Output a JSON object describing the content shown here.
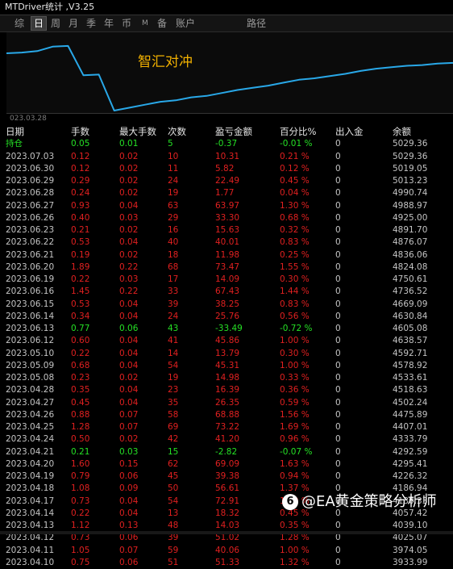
{
  "window": {
    "title": "MTDriver统计 ,V3.25"
  },
  "toolbar": {
    "buttons": [
      "综",
      "日",
      "周",
      "月",
      "季",
      "年",
      "币",
      "M",
      "备",
      "账户",
      "路径"
    ],
    "active": "日"
  },
  "chart": {
    "title": "智汇对冲",
    "start_date_label": "023.03.28",
    "line_color": "#29a8e8",
    "chart_data": {
      "type": "line",
      "title": "",
      "xlabel": "",
      "ylabel": "",
      "legend": "none",
      "grid": false,
      "ylim": [
        0.0,
        1.0
      ],
      "series": [
        {
          "values": [
            0.78,
            0.79,
            0.81,
            0.87,
            0.88,
            0.48,
            0.49,
            0.0,
            0.04,
            0.08,
            0.12,
            0.14,
            0.18,
            0.2,
            0.24,
            0.28,
            0.31,
            0.34,
            0.38,
            0.42,
            0.44,
            0.47,
            0.5,
            0.54,
            0.57,
            0.59,
            0.61,
            0.62,
            0.64,
            0.65
          ]
        }
      ]
    }
  },
  "table": {
    "headers": [
      "日期",
      "手数",
      "最大手数",
      "次数",
      "盈亏金额",
      "百分比%",
      "出入金",
      "余额"
    ],
    "rows": [
      {
        "cells": [
          "持仓",
          "0.05",
          "0.01",
          "5",
          "-0.37",
          "-0.01 %",
          "0",
          "5029.36"
        ],
        "type": "green"
      },
      {
        "cells": [
          "2023.07.03",
          "0.12",
          "0.02",
          "10",
          "10.31",
          "0.21 %",
          "0",
          "5029.36"
        ],
        "type": "red"
      },
      {
        "cells": [
          "2023.06.30",
          "0.12",
          "0.02",
          "11",
          "5.82",
          "0.12 %",
          "0",
          "5019.05"
        ],
        "type": "red"
      },
      {
        "cells": [
          "2023.06.29",
          "0.29",
          "0.02",
          "24",
          "22.49",
          "0.45 %",
          "0",
          "5013.23"
        ],
        "type": "red"
      },
      {
        "cells": [
          "2023.06.28",
          "0.24",
          "0.02",
          "19",
          "1.77",
          "0.04 %",
          "0",
          "4990.74"
        ],
        "type": "red"
      },
      {
        "cells": [
          "2023.06.27",
          "0.93",
          "0.04",
          "63",
          "63.97",
          "1.30 %",
          "0",
          "4988.97"
        ],
        "type": "red"
      },
      {
        "cells": [
          "2023.06.26",
          "0.40",
          "0.03",
          "29",
          "33.30",
          "0.68 %",
          "0",
          "4925.00"
        ],
        "type": "red"
      },
      {
        "cells": [
          "2023.06.23",
          "0.21",
          "0.02",
          "16",
          "15.63",
          "0.32 %",
          "0",
          "4891.70"
        ],
        "type": "red"
      },
      {
        "cells": [
          "2023.06.22",
          "0.53",
          "0.04",
          "40",
          "40.01",
          "0.83 %",
          "0",
          "4876.07"
        ],
        "type": "red"
      },
      {
        "cells": [
          "2023.06.21",
          "0.19",
          "0.02",
          "18",
          "11.98",
          "0.25 %",
          "0",
          "4836.06"
        ],
        "type": "red"
      },
      {
        "cells": [
          "2023.06.20",
          "1.89",
          "0.22",
          "68",
          "73.47",
          "1.55 %",
          "0",
          "4824.08"
        ],
        "type": "red"
      },
      {
        "cells": [
          "2023.06.19",
          "0.22",
          "0.03",
          "17",
          "14.09",
          "0.30 %",
          "0",
          "4750.61"
        ],
        "type": "red"
      },
      {
        "cells": [
          "2023.06.16",
          "1.45",
          "0.22",
          "33",
          "67.43",
          "1.44 %",
          "0",
          "4736.52"
        ],
        "type": "red"
      },
      {
        "cells": [
          "2023.06.15",
          "0.53",
          "0.04",
          "39",
          "38.25",
          "0.83 %",
          "0",
          "4669.09"
        ],
        "type": "red"
      },
      {
        "cells": [
          "2023.06.14",
          "0.34",
          "0.04",
          "24",
          "25.76",
          "0.56 %",
          "0",
          "4630.84"
        ],
        "type": "red"
      },
      {
        "cells": [
          "2023.06.13",
          "0.77",
          "0.06",
          "43",
          "-33.49",
          "-0.72 %",
          "0",
          "4605.08"
        ],
        "type": "green"
      },
      {
        "cells": [
          "2023.06.12",
          "0.60",
          "0.04",
          "41",
          "45.86",
          "1.00 %",
          "0",
          "4638.57"
        ],
        "type": "red"
      },
      {
        "cells": [
          "2023.05.10",
          "0.22",
          "0.04",
          "14",
          "13.79",
          "0.30 %",
          "0",
          "4592.71"
        ],
        "type": "red"
      },
      {
        "cells": [
          "2023.05.09",
          "0.68",
          "0.04",
          "54",
          "45.31",
          "1.00 %",
          "0",
          "4578.92"
        ],
        "type": "red"
      },
      {
        "cells": [
          "2023.05.08",
          "0.23",
          "0.02",
          "19",
          "14.98",
          "0.33 %",
          "0",
          "4533.61"
        ],
        "type": "red"
      },
      {
        "cells": [
          "2023.04.28",
          "0.35",
          "0.04",
          "23",
          "16.39",
          "0.36 %",
          "0",
          "4518.63"
        ],
        "type": "red"
      },
      {
        "cells": [
          "2023.04.27",
          "0.45",
          "0.04",
          "35",
          "26.35",
          "0.59 %",
          "0",
          "4502.24"
        ],
        "type": "red"
      },
      {
        "cells": [
          "2023.04.26",
          "0.88",
          "0.07",
          "58",
          "68.88",
          "1.56 %",
          "0",
          "4475.89"
        ],
        "type": "red"
      },
      {
        "cells": [
          "2023.04.25",
          "1.28",
          "0.07",
          "69",
          "73.22",
          "1.69 %",
          "0",
          "4407.01"
        ],
        "type": "red"
      },
      {
        "cells": [
          "2023.04.24",
          "0.50",
          "0.02",
          "42",
          "41.20",
          "0.96 %",
          "0",
          "4333.79"
        ],
        "type": "red"
      },
      {
        "cells": [
          "2023.04.21",
          "0.21",
          "0.03",
          "15",
          "-2.82",
          "-0.07 %",
          "0",
          "4292.59"
        ],
        "type": "green"
      },
      {
        "cells": [
          "2023.04.20",
          "1.60",
          "0.15",
          "62",
          "69.09",
          "1.63 %",
          "0",
          "4295.41"
        ],
        "type": "red"
      },
      {
        "cells": [
          "2023.04.19",
          "0.79",
          "0.06",
          "45",
          "39.38",
          "0.94 %",
          "0",
          "4226.32"
        ],
        "type": "red"
      },
      {
        "cells": [
          "2023.04.18",
          "1.08",
          "0.09",
          "50",
          "56.61",
          "1.37 %",
          "0",
          "4186.94"
        ],
        "type": "red"
      },
      {
        "cells": [
          "2023.04.17",
          "0.73",
          "0.04",
          "54",
          "72.91",
          "1.80 %",
          "0",
          "4130.33"
        ],
        "type": "red"
      },
      {
        "cells": [
          "2023.04.14",
          "0.22",
          "0.04",
          "13",
          "18.32",
          "0.45 %",
          "0",
          "4057.42"
        ],
        "type": "red"
      },
      {
        "cells": [
          "2023.04.13",
          "1.12",
          "0.13",
          "48",
          "14.03",
          "0.35 %",
          "0",
          "4039.10"
        ],
        "type": "red"
      },
      {
        "cells": [
          "2023.04.12",
          "0.73",
          "0.06",
          "39",
          "51.02",
          "1.28 %",
          "0",
          "4025.07"
        ],
        "type": "red"
      },
      {
        "cells": [
          "2023.04.11",
          "1.05",
          "0.07",
          "59",
          "40.06",
          "1.00 %",
          "0",
          "3974.05"
        ],
        "type": "red"
      },
      {
        "cells": [
          "2023.04.10",
          "0.75",
          "0.06",
          "51",
          "51.33",
          "1.32 %",
          "0",
          "3933.99"
        ],
        "type": "red"
      }
    ]
  },
  "watermark": {
    "logo": "6",
    "text": "@EA黄金策略分析师"
  }
}
